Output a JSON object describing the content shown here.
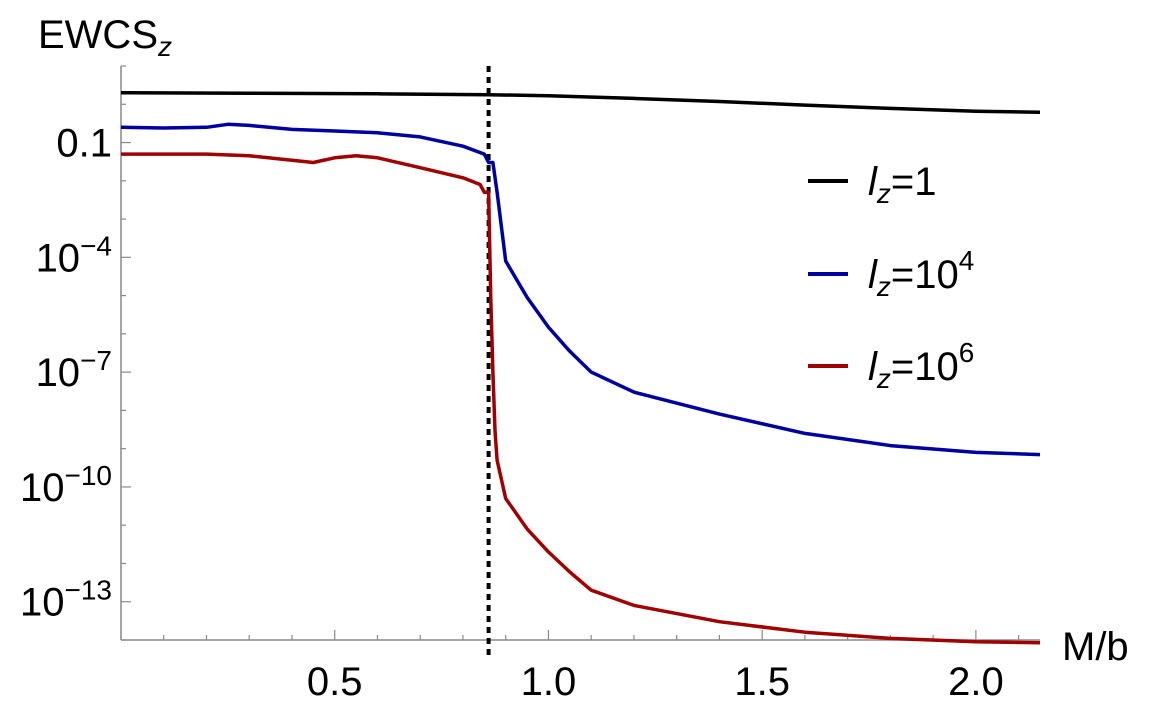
{
  "chart_data": {
    "type": "line",
    "title": "",
    "xlabel": "M/b",
    "ylabel": {
      "main": "EWCS",
      "sub": "z"
    },
    "y_scale": "log10",
    "xlim": [
      0,
      2.15
    ],
    "ylim": [
      1e-14,
      10
    ],
    "x_ticks": [
      {
        "value": 0.5,
        "label": "0.5"
      },
      {
        "value": 1.0,
        "label": "1.0"
      },
      {
        "value": 1.5,
        "label": "1.5"
      },
      {
        "value": 2.0,
        "label": "2.0"
      }
    ],
    "y_ticks": [
      {
        "value": 0.1,
        "base": "0.1",
        "exp": ""
      },
      {
        "value": 0.0001,
        "base": "10",
        "exp": "−4"
      },
      {
        "value": 1e-07,
        "base": "10",
        "exp": "−7"
      },
      {
        "value": 1e-10,
        "base": "10",
        "exp": "−10"
      },
      {
        "value": 1e-13,
        "base": "10",
        "exp": "−13"
      }
    ],
    "reference_line": {
      "x": 0.86,
      "style": "dotted",
      "color": "#000000"
    },
    "legend_position": "right",
    "series": [
      {
        "name": "l_z=1",
        "label": {
          "var": "l",
          "sub": "z",
          "eq": "=1",
          "sup": ""
        },
        "color": "#000000",
        "x": [
          0.0,
          0.3,
          0.6,
          0.86,
          1.0,
          1.2,
          1.4,
          1.6,
          1.8,
          2.0,
          2.15
        ],
        "y": [
          2.0,
          1.95,
          1.88,
          1.78,
          1.66,
          1.42,
          1.18,
          0.95,
          0.78,
          0.66,
          0.62
        ]
      },
      {
        "name": "l_z=10^4",
        "label": {
          "var": "l",
          "sub": "z",
          "eq": "=10",
          "sup": "4"
        },
        "color": "#0000a0",
        "x": [
          0.0,
          0.1,
          0.2,
          0.25,
          0.3,
          0.4,
          0.5,
          0.6,
          0.7,
          0.8,
          0.85,
          0.86,
          0.87,
          0.88,
          0.9,
          0.95,
          1.0,
          1.05,
          1.1,
          1.2,
          1.4,
          1.6,
          1.8,
          2.0,
          2.15
        ],
        "y": [
          0.25,
          0.24,
          0.25,
          0.3,
          0.28,
          0.22,
          0.2,
          0.18,
          0.14,
          0.08,
          0.05,
          0.03,
          0.03,
          0.005,
          8e-05,
          9e-06,
          1.5e-06,
          3.5e-07,
          1e-07,
          3e-08,
          8e-09,
          2.5e-09,
          1.2e-09,
          8e-10,
          7e-10
        ]
      },
      {
        "name": "l_z=10^6",
        "label": {
          "var": "l",
          "sub": "z",
          "eq": "=10",
          "sup": "6"
        },
        "color": "#a00000",
        "x": [
          0.0,
          0.2,
          0.3,
          0.45,
          0.5,
          0.55,
          0.6,
          0.7,
          0.8,
          0.84,
          0.85,
          0.86,
          0.865,
          0.87,
          0.875,
          0.88,
          0.9,
          0.95,
          1.0,
          1.05,
          1.1,
          1.2,
          1.4,
          1.6,
          1.8,
          2.0,
          2.15
        ],
        "y": [
          0.05,
          0.05,
          0.045,
          0.03,
          0.04,
          0.045,
          0.04,
          0.022,
          0.012,
          0.008,
          0.005,
          0.005,
          1e-05,
          1e-07,
          3e-09,
          5e-10,
          5e-11,
          8e-12,
          2e-12,
          6e-13,
          2e-13,
          8e-14,
          3e-14,
          1.6e-14,
          1.1e-14,
          9e-15,
          8.5e-15
        ]
      }
    ]
  }
}
